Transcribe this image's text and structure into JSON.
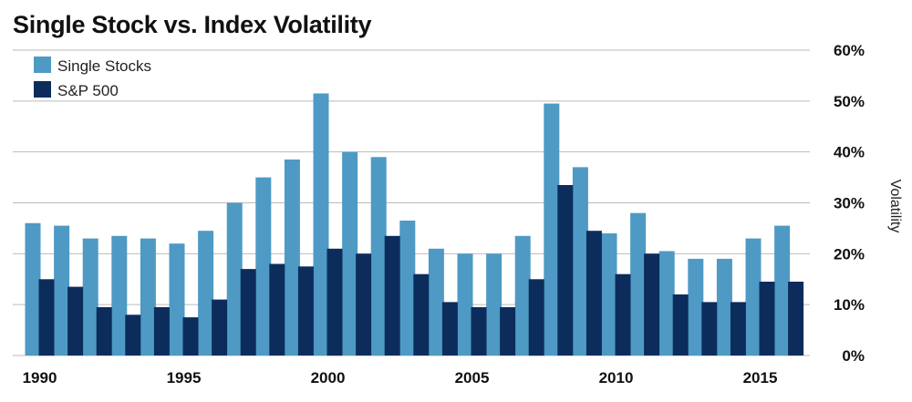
{
  "chart_data": {
    "type": "bar",
    "title": "Single Stock vs. Index Volatility",
    "ylabel": "Volatility",
    "xlabel": "",
    "ylim": [
      0,
      60
    ],
    "y_ticks": [
      "0%",
      "10%",
      "20%",
      "30%",
      "40%",
      "50%",
      "60%"
    ],
    "x_tick_labels": [
      "1990",
      "1995",
      "2000",
      "2005",
      "2010",
      "2015"
    ],
    "grid": "horizontal",
    "legend_position": "top-left",
    "colors": {
      "single_stocks": "#4e9ac4",
      "sp500": "#0c2d5c",
      "grid": "#bbbbbb"
    },
    "categories": [
      1990,
      1991,
      1992,
      1993,
      1994,
      1995,
      1996,
      1997,
      1998,
      1999,
      2000,
      2001,
      2002,
      2003,
      2004,
      2005,
      2006,
      2007,
      2008,
      2009,
      2010,
      2011,
      2012,
      2013,
      2014,
      2015,
      2016
    ],
    "series": [
      {
        "name": "Single Stocks",
        "values": [
          26,
          25.5,
          23,
          23.5,
          23,
          22,
          24.5,
          30,
          35,
          38.5,
          51.5,
          40,
          39,
          26.5,
          21,
          20,
          20,
          23.5,
          49.5,
          37,
          24,
          28,
          20.5,
          19,
          19,
          23,
          25.5
        ]
      },
      {
        "name": "S&P 500",
        "values": [
          15,
          13.5,
          9.5,
          8,
          9.5,
          7.5,
          11,
          17,
          18,
          17.5,
          21,
          20,
          23.5,
          16,
          10.5,
          9.5,
          9.5,
          15,
          33.5,
          24.5,
          16,
          20,
          12,
          10.5,
          10.5,
          14.5,
          14.5
        ]
      }
    ]
  }
}
